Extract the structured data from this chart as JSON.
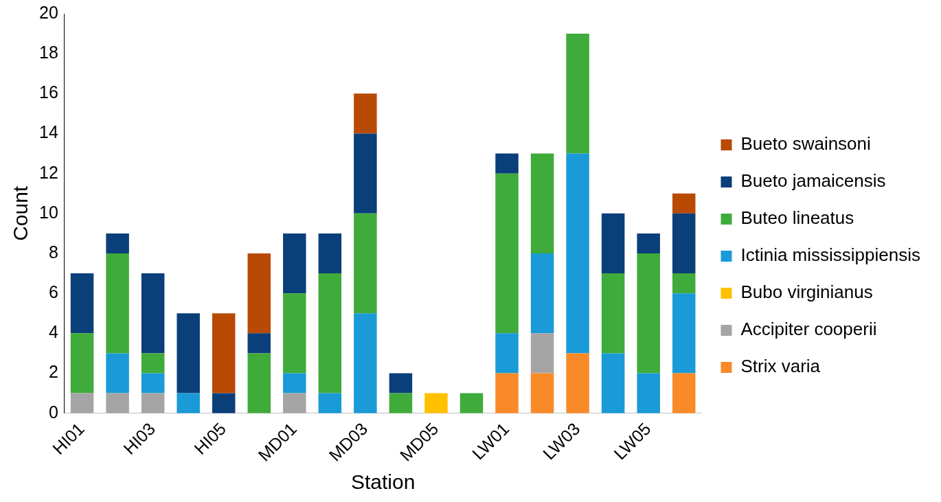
{
  "chart_data": {
    "type": "bar",
    "stacked": true,
    "xlabel": "Station",
    "ylabel": "Count",
    "categories": [
      "HI01",
      null,
      "HI03",
      null,
      "HI05",
      null,
      "MD01",
      null,
      "MD03",
      null,
      "MD05",
      null,
      "LW01",
      null,
      "LW03",
      null,
      "LW05",
      null
    ],
    "ylim": [
      0,
      20
    ],
    "yticks": [
      0,
      2,
      4,
      6,
      8,
      10,
      12,
      14,
      16,
      18,
      20
    ],
    "grid": false,
    "legend": "right",
    "series": [
      {
        "name": "Strix varia",
        "color": "#f98a28",
        "values": [
          0,
          0,
          0,
          0,
          0,
          0,
          0,
          0,
          0,
          0,
          0,
          0,
          2,
          2,
          3,
          0,
          0,
          2
        ]
      },
      {
        "name": "Accipiter cooperii",
        "color": "#a5a5a5",
        "values": [
          1,
          1,
          1,
          0,
          0,
          0,
          1,
          0,
          0,
          0,
          0,
          0,
          0,
          2,
          0,
          0,
          0,
          0
        ]
      },
      {
        "name": "Bubo virginianus",
        "color": "#ffc000",
        "values": [
          0,
          0,
          0,
          0,
          0,
          0,
          0,
          0,
          0,
          0,
          1,
          0,
          0,
          0,
          0,
          0,
          0,
          0
        ]
      },
      {
        "name": "Ictinia mississippiensis",
        "color": "#1a9ad6",
        "values": [
          0,
          2,
          1,
          1,
          0,
          0,
          1,
          1,
          5,
          0,
          0,
          0,
          2,
          4,
          10,
          3,
          2,
          4
        ]
      },
      {
        "name": "Buteo lineatus",
        "color": "#3fab3a",
        "values": [
          3,
          5,
          1,
          0,
          0,
          3,
          4,
          6,
          5,
          1,
          0,
          1,
          8,
          5,
          6,
          4,
          6,
          1
        ]
      },
      {
        "name": "Bueto jamaicensis",
        "color": "#0b3f7a",
        "values": [
          3,
          1,
          4,
          4,
          1,
          1,
          3,
          2,
          4,
          1,
          0,
          0,
          1,
          0,
          0,
          3,
          1,
          3
        ]
      },
      {
        "name": "Bueto swainsoni",
        "color": "#b94a04",
        "values": [
          0,
          0,
          0,
          0,
          4,
          4,
          0,
          0,
          2,
          0,
          0,
          0,
          0,
          0,
          0,
          0,
          0,
          1
        ]
      }
    ]
  }
}
